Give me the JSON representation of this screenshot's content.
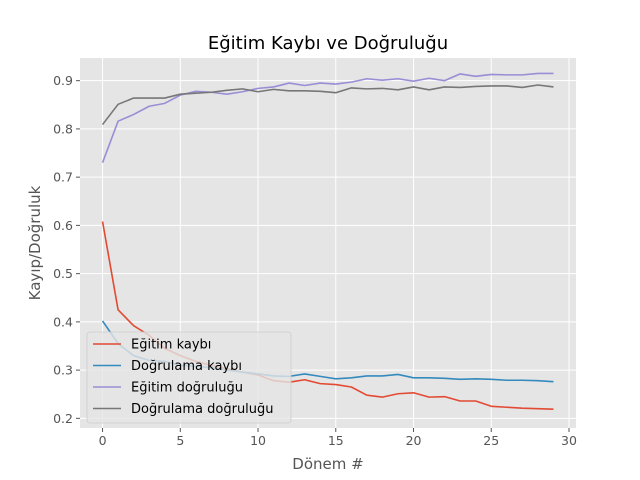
{
  "chart_data": {
    "type": "line",
    "title": "Eğitim Kaybı ve Doğruluğu",
    "xlabel": "Dönem #",
    "ylabel": "Kayıp/Doğruluk",
    "xlim": [
      -1.45,
      30.45
    ],
    "ylim": [
      0.18,
      0.947
    ],
    "xticks": [
      0,
      5,
      10,
      15,
      20,
      25,
      30
    ],
    "yticks": [
      0.2,
      0.3,
      0.4,
      0.5,
      0.6,
      0.7,
      0.8,
      0.9
    ],
    "grid": true,
    "legend_position": "lower-left",
    "x": [
      0,
      1,
      2,
      3,
      4,
      5,
      6,
      7,
      8,
      9,
      10,
      11,
      12,
      13,
      14,
      15,
      16,
      17,
      18,
      19,
      20,
      21,
      22,
      23,
      24,
      25,
      26,
      27,
      28,
      29
    ],
    "series": [
      {
        "name": "Eğitim kaybı",
        "color": "#E24A33",
        "values": [
          0.608,
          0.425,
          0.392,
          0.372,
          0.345,
          0.33,
          0.318,
          0.31,
          0.303,
          0.296,
          0.29,
          0.278,
          0.275,
          0.28,
          0.272,
          0.27,
          0.265,
          0.248,
          0.244,
          0.251,
          0.253,
          0.244,
          0.245,
          0.236,
          0.236,
          0.225,
          0.223,
          0.221,
          0.22,
          0.219
        ]
      },
      {
        "name": "Doğrulama kaybı",
        "color": "#348ABD",
        "values": [
          0.402,
          0.355,
          0.33,
          0.32,
          0.318,
          0.31,
          0.308,
          0.305,
          0.3,
          0.296,
          0.292,
          0.288,
          0.287,
          0.292,
          0.287,
          0.282,
          0.284,
          0.288,
          0.288,
          0.291,
          0.284,
          0.284,
          0.283,
          0.281,
          0.282,
          0.281,
          0.279,
          0.279,
          0.278,
          0.276
        ]
      },
      {
        "name": "Eğitim doğruluğu",
        "color": "#988ED5",
        "values": [
          0.73,
          0.816,
          0.83,
          0.847,
          0.853,
          0.87,
          0.878,
          0.876,
          0.872,
          0.877,
          0.884,
          0.887,
          0.895,
          0.89,
          0.895,
          0.893,
          0.897,
          0.904,
          0.901,
          0.904,
          0.899,
          0.905,
          0.9,
          0.914,
          0.909,
          0.913,
          0.912,
          0.912,
          0.915,
          0.915
        ]
      },
      {
        "name": "Doğrulama doğruluğu",
        "color": "#777777",
        "values": [
          0.809,
          0.851,
          0.864,
          0.864,
          0.864,
          0.872,
          0.874,
          0.876,
          0.88,
          0.883,
          0.877,
          0.882,
          0.879,
          0.879,
          0.878,
          0.875,
          0.885,
          0.883,
          0.884,
          0.881,
          0.887,
          0.881,
          0.887,
          0.886,
          0.888,
          0.889,
          0.889,
          0.886,
          0.891,
          0.887
        ]
      }
    ]
  }
}
